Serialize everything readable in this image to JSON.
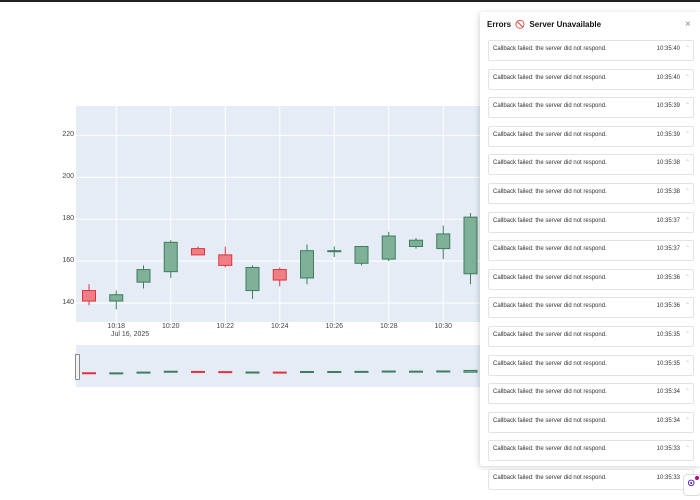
{
  "error_panel": {
    "title": "Errors",
    "status": "Server Unavailable",
    "close_label": "×",
    "errors": [
      {
        "message": "Callback failed: the server did not respond.",
        "time": "10:35:40"
      },
      {
        "message": "Callback failed: the server did not respond.",
        "time": "10:35:40"
      },
      {
        "message": "Callback failed: the server did not respond.",
        "time": "10:35:39"
      },
      {
        "message": "Callback failed: the server did not respond.",
        "time": "10:35:39"
      },
      {
        "message": "Callback failed: the server did not respond.",
        "time": "10:35:38"
      },
      {
        "message": "Callback failed: the server did not respond.",
        "time": "10:35:38"
      },
      {
        "message": "Callback failed: the server did not respond.",
        "time": "10:35:37"
      },
      {
        "message": "Callback failed: the server did not respond.",
        "time": "10:35:37"
      },
      {
        "message": "Callback failed: the server did not respond.",
        "time": "10:35:36"
      },
      {
        "message": "Callback failed: the server did not respond.",
        "time": "10:35:36"
      },
      {
        "message": "Callback failed: the server did not respond.",
        "time": "10:35:35"
      },
      {
        "message": "Callback failed: the server did not respond.",
        "time": "10:35:35"
      },
      {
        "message": "Callback failed: the server did not respond.",
        "time": "10:35:34"
      },
      {
        "message": "Callback failed: the server did not respond.",
        "time": "10:35:34"
      },
      {
        "message": "Callback failed: the server did not respond.",
        "time": "10:35:33"
      },
      {
        "message": "Callback failed: the server did not respond.",
        "time": "10:35:33"
      }
    ]
  },
  "chart_data": {
    "type": "candlestick",
    "x": [
      "10:17",
      "10:18",
      "10:19",
      "10:20",
      "10:21",
      "10:22",
      "10:23",
      "10:24",
      "10:25",
      "10:26",
      "10:27",
      "10:28",
      "10:29",
      "10:30",
      "10:31"
    ],
    "open": [
      146,
      141,
      150,
      155,
      166,
      163,
      146,
      156,
      152,
      165,
      159,
      161,
      167,
      166,
      154
    ],
    "high": [
      149,
      146,
      158,
      170,
      167,
      167,
      158,
      157,
      168,
      167,
      167,
      174,
      171,
      177,
      183
    ],
    "low": [
      139,
      137,
      147,
      152,
      163,
      157,
      142,
      148,
      149,
      162,
      158,
      160,
      166,
      161,
      149
    ],
    "close": [
      141,
      144,
      156,
      169,
      163,
      158,
      157,
      151,
      165,
      165,
      167,
      172,
      170,
      173,
      181
    ],
    "x_ticks": [
      "10:18",
      "10:20",
      "10:22",
      "10:24",
      "10:26",
      "10:28",
      "10:30"
    ],
    "x_sublabel": "Jul 16, 2025",
    "y_ticks": [
      140,
      160,
      180,
      200,
      220
    ],
    "ylim": [
      131,
      234
    ],
    "increasing_color": "#7fb199",
    "decreasing_color": "#f07f85",
    "rangeslider": true,
    "grid": true
  }
}
